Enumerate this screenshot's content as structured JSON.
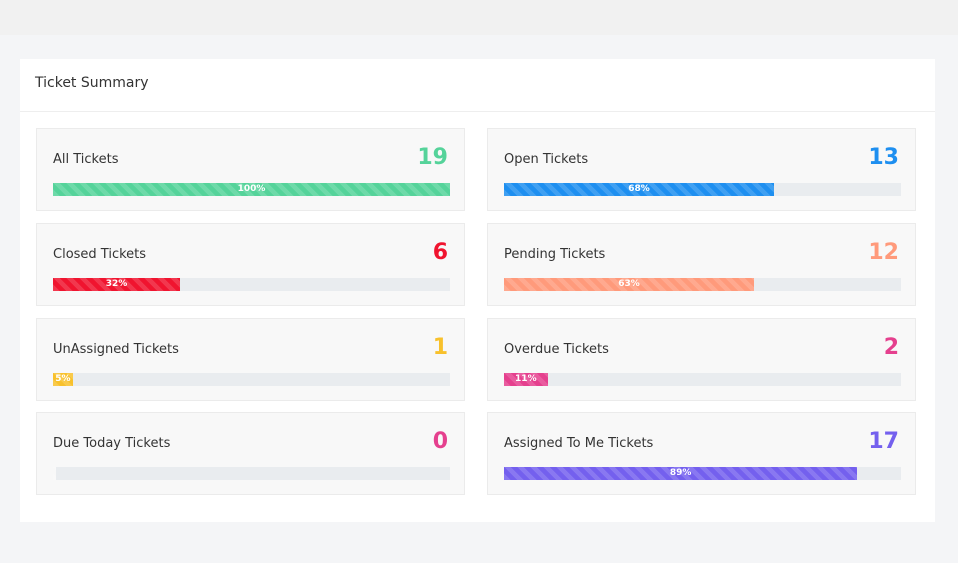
{
  "panel": {
    "title": "Ticket Summary"
  },
  "cards": [
    {
      "label": "All Tickets",
      "count": 19,
      "percent": 100,
      "percent_label": "100%",
      "color": "#55d39a"
    },
    {
      "label": "Open Tickets",
      "count": 13,
      "percent": 68,
      "percent_label": "68%",
      "color": "#1e8ff0"
    },
    {
      "label": "Closed Tickets",
      "count": 6,
      "percent": 32,
      "percent_label": "32%",
      "color": "#f0142f"
    },
    {
      "label": "Pending Tickets",
      "count": 12,
      "percent": 63,
      "percent_label": "63%",
      "color": "#ff9a7b"
    },
    {
      "label": "UnAssigned Tickets",
      "count": 1,
      "percent": 5,
      "percent_label": "5%",
      "color": "#f8c12c"
    },
    {
      "label": "Overdue Tickets",
      "count": 2,
      "percent": 11,
      "percent_label": "11%",
      "color": "#e5408e"
    },
    {
      "label": "Due Today Tickets",
      "count": 0,
      "percent": 0,
      "color": "#e5408e"
    },
    {
      "label": "Assigned To Me Tickets",
      "count": 17,
      "percent": 89,
      "percent_label": "89%",
      "color": "#7460ee"
    }
  ]
}
